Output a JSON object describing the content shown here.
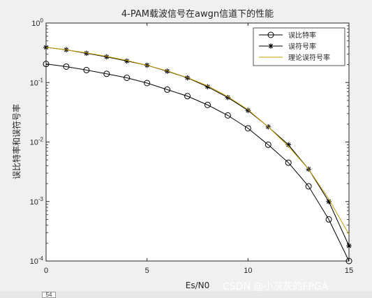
{
  "chart_data": {
    "type": "line",
    "title": "4-PAM载波信号在awgn信道下的性能",
    "xlabel": "Es/N0",
    "ylabel": "误比特率和误符号率",
    "xlim": [
      0,
      15
    ],
    "ylim": [
      0.0001,
      1
    ],
    "yscale": "log",
    "grid": false,
    "legend_position": "top-right",
    "x_ticks": [
      "0",
      "5",
      "10",
      "15"
    ],
    "y_ticks": [
      {
        "base": "10",
        "exp": "0"
      },
      {
        "base": "10",
        "exp": "-1"
      },
      {
        "base": "10",
        "exp": "-2"
      },
      {
        "base": "10",
        "exp": "-3"
      },
      {
        "base": "10",
        "exp": "-4"
      }
    ],
    "series": [
      {
        "name": "误比特率",
        "marker": "circle",
        "color": "#000000",
        "x": [
          0,
          1,
          2,
          3,
          4,
          5,
          6,
          7,
          8,
          9,
          10,
          11,
          12,
          13,
          14,
          15
        ],
        "y": [
          0.205,
          0.185,
          0.162,
          0.14,
          0.12,
          0.098,
          0.076,
          0.059,
          0.042,
          0.028,
          0.017,
          0.009,
          0.0045,
          0.0018,
          0.0005,
          0.0001
        ]
      },
      {
        "name": "误符号率",
        "marker": "star",
        "color": "#000000",
        "x": [
          0,
          1,
          2,
          3,
          4,
          5,
          6,
          7,
          8,
          9,
          10,
          11,
          12,
          13,
          14,
          15
        ],
        "y": [
          0.39,
          0.355,
          0.31,
          0.27,
          0.23,
          0.195,
          0.155,
          0.12,
          0.085,
          0.056,
          0.034,
          0.018,
          0.009,
          0.0035,
          0.001,
          0.00018
        ]
      },
      {
        "name": "理论误符号率",
        "marker": "none",
        "color": "#c8a000",
        "x": [
          0,
          1,
          2,
          3,
          4,
          5,
          6,
          7,
          8,
          9,
          10,
          11,
          12,
          13,
          14,
          15
        ],
        "y": [
          0.39,
          0.355,
          0.315,
          0.275,
          0.235,
          0.195,
          0.157,
          0.121,
          0.088,
          0.058,
          0.035,
          0.018,
          0.0085,
          0.0035,
          0.0011,
          0.00028
        ]
      }
    ]
  },
  "watermark": "CSDN @小灰灰的FPGA",
  "bottom_tab_label": "54"
}
